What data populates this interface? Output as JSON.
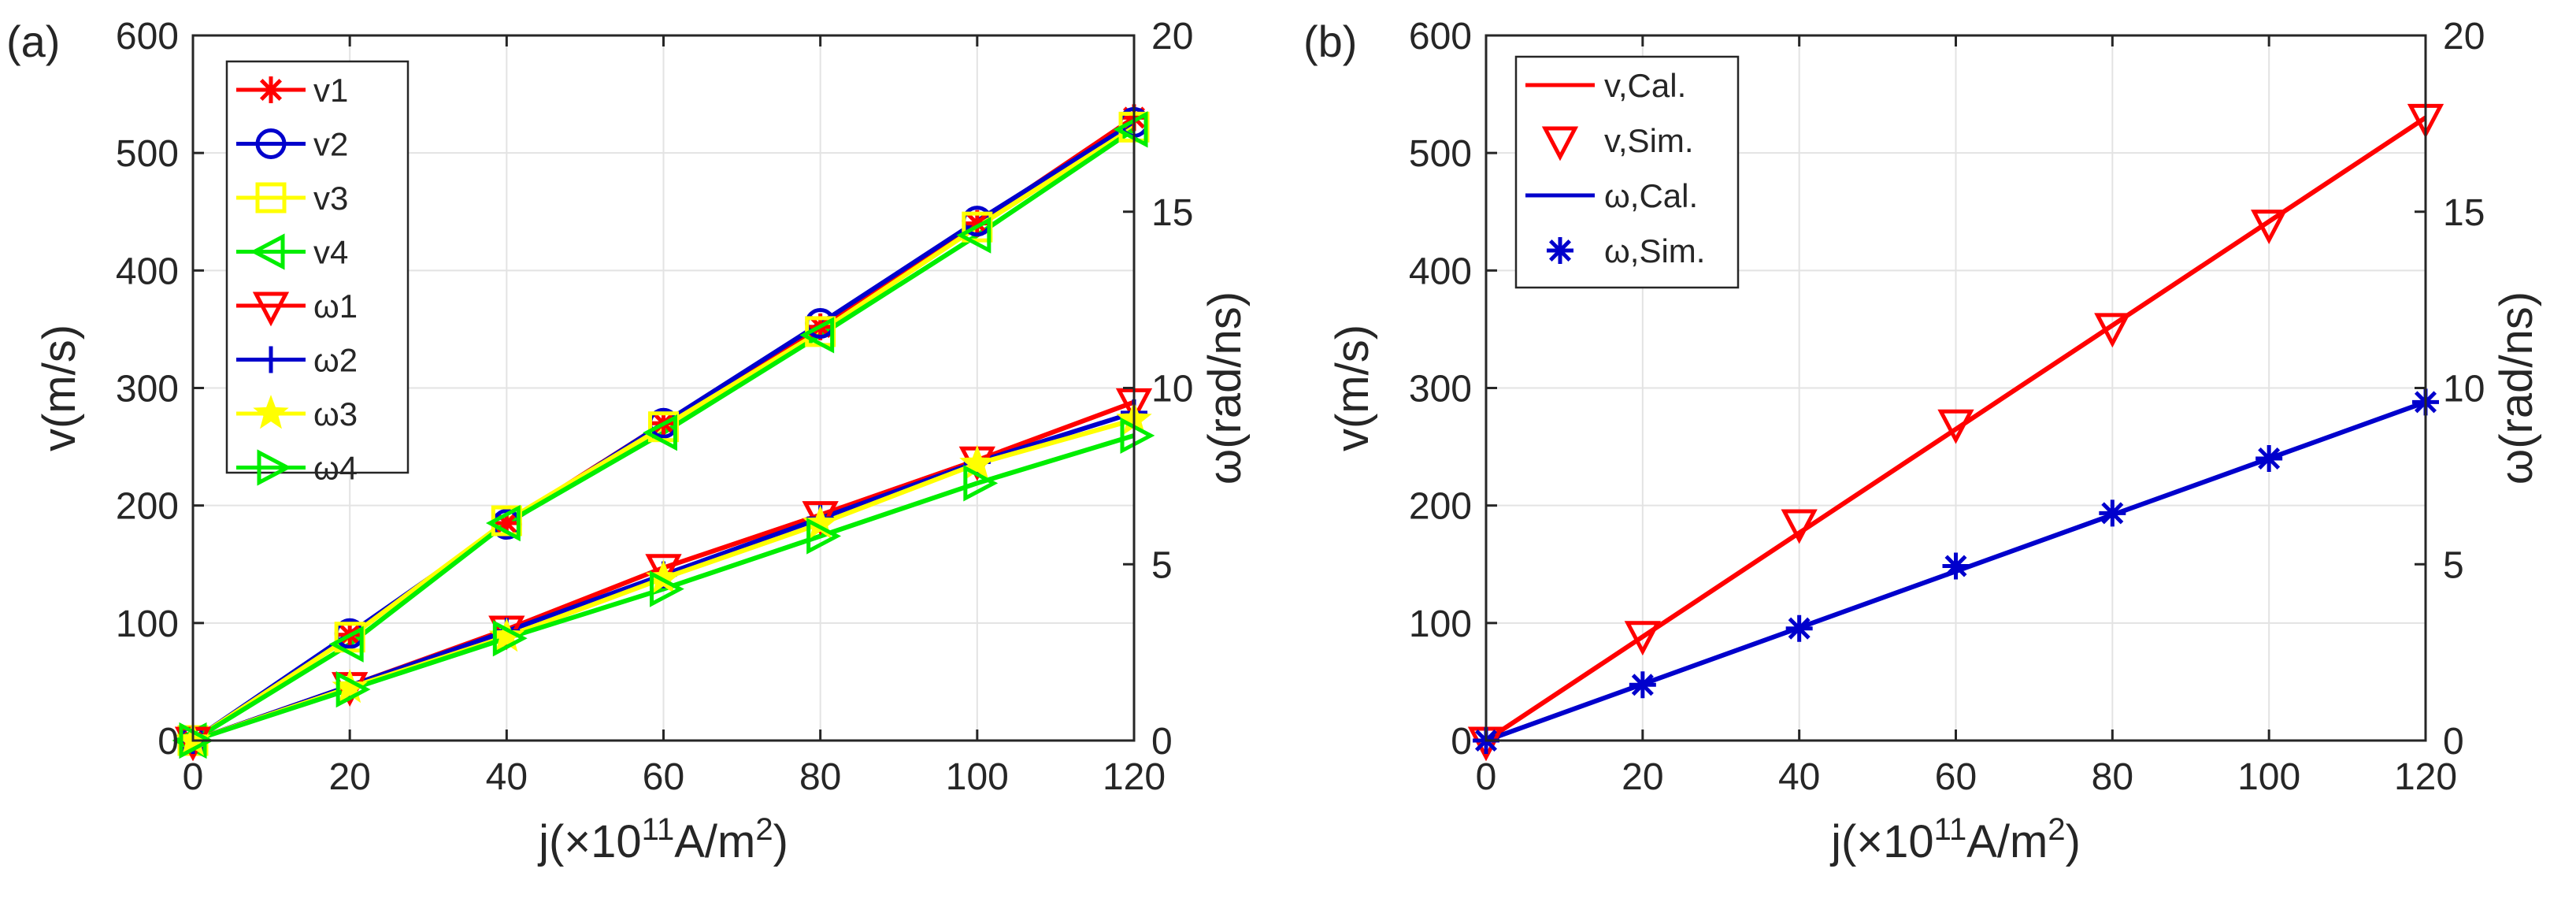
{
  "figure": {
    "title": ""
  },
  "chart_data": [
    {
      "type": "line",
      "panel_label": "(a)",
      "xlabel": "j(×10",
      "xlabel_sup": "11",
      "xlabel_unit": "A/m",
      "xlabel_unit_sup": "2",
      "xlabel_close": ")",
      "ylabel": "v(m/s)",
      "y2label": "ω(rad/ns)",
      "xlim": [
        0,
        120
      ],
      "ylim": [
        0,
        600
      ],
      "y2lim": [
        0,
        20
      ],
      "xticks": [
        0,
        20,
        40,
        60,
        80,
        100,
        120
      ],
      "yticks": [
        0,
        100,
        200,
        300,
        400,
        500,
        600
      ],
      "y2ticks": [
        0,
        5,
        10,
        15,
        20
      ],
      "grid": true,
      "legend_position": "top-left",
      "x": [
        0,
        20,
        40,
        60,
        80,
        100,
        120
      ],
      "series": [
        {
          "name": "v1",
          "axis": "left",
          "color": "#ff0000",
          "marker": "asterisk",
          "values": [
            0,
            90,
            185,
            270,
            352,
            440,
            530
          ]
        },
        {
          "name": "v2",
          "axis": "left",
          "color": "#0000cc",
          "marker": "circle",
          "values": [
            0,
            91,
            184,
            270,
            355,
            442,
            526
          ]
        },
        {
          "name": "v3",
          "axis": "left",
          "color": "#ffff00",
          "marker": "square",
          "values": [
            0,
            88,
            187,
            267,
            348,
            437,
            522
          ]
        },
        {
          "name": "v4",
          "axis": "left",
          "color": "#00ee00",
          "marker": "triangle-left",
          "values": [
            0,
            82,
            185,
            262,
            345,
            430,
            520
          ]
        },
        {
          "name": "ω1",
          "axis": "right",
          "color": "#ff0000",
          "marker": "triangle-down",
          "values": [
            0,
            1.55,
            3.15,
            4.9,
            6.4,
            7.95,
            9.6
          ]
        },
        {
          "name": "ω2",
          "axis": "right",
          "color": "#0000cc",
          "marker": "plus",
          "values": [
            0,
            1.55,
            3.1,
            4.7,
            6.3,
            7.9,
            9.3
          ]
        },
        {
          "name": "ω3",
          "axis": "right",
          "color": "#ffff00",
          "marker": "pentagram",
          "values": [
            0,
            1.5,
            2.95,
            4.6,
            6.15,
            7.85,
            9.1
          ]
        },
        {
          "name": "ω4",
          "axis": "right",
          "color": "#00ee00",
          "marker": "triangle-right",
          "values": [
            0,
            1.45,
            2.9,
            4.3,
            5.8,
            7.3,
            8.65
          ]
        }
      ]
    },
    {
      "type": "line",
      "panel_label": "(b)",
      "xlabel": "j(×10",
      "xlabel_sup": "11",
      "xlabel_unit": "A/m",
      "xlabel_unit_sup": "2",
      "xlabel_close": ")",
      "ylabel": "v(m/s)",
      "y2label": "ω(rad/ns)",
      "xlim": [
        0,
        120
      ],
      "ylim": [
        0,
        600
      ],
      "y2lim": [
        0,
        20
      ],
      "xticks": [
        0,
        20,
        40,
        60,
        80,
        100,
        120
      ],
      "yticks": [
        0,
        100,
        200,
        300,
        400,
        500,
        600
      ],
      "y2ticks": [
        0,
        5,
        10,
        15,
        20
      ],
      "grid": true,
      "legend_position": "top-left",
      "x": [
        0,
        20,
        40,
        60,
        80,
        100,
        120
      ],
      "series": [
        {
          "name": "v,Cal.",
          "axis": "left",
          "color": "#ff0000",
          "marker": "none",
          "line": true,
          "values": [
            0,
            88.3,
            176.7,
            265,
            353.3,
            441.7,
            530
          ]
        },
        {
          "name": "v,Sim.",
          "axis": "left",
          "color": "#ff0000",
          "marker": "triangle-down",
          "line": false,
          "values": [
            0,
            90,
            185,
            270,
            352,
            440,
            530
          ]
        },
        {
          "name": "ω,Cal.",
          "axis": "right",
          "color": "#0000cc",
          "marker": "none",
          "line": true,
          "values": [
            0,
            1.6,
            3.2,
            4.8,
            6.4,
            8.0,
            9.6
          ]
        },
        {
          "name": "ω,Sim.",
          "axis": "right",
          "color": "#0000cc",
          "marker": "asterisk",
          "line": false,
          "values": [
            0,
            1.58,
            3.18,
            4.95,
            6.45,
            8.0,
            9.6
          ]
        }
      ]
    }
  ]
}
